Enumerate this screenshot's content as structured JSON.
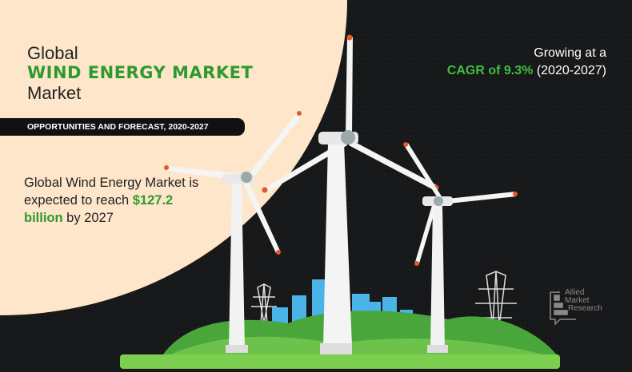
{
  "title": {
    "line1": "Global",
    "highlight": "WIND ENERGY  MARKET",
    "line3": "Market"
  },
  "banner": "OPPORTUNITIES AND FORECAST, 2020-2027",
  "description": {
    "prefix": "Global Wind Energy Market is expected to reach ",
    "value": "$127.2 billion",
    "suffix": " by 2027"
  },
  "growth": {
    "line1": "Growing at a",
    "cagr": "CAGR of 9.3%",
    "period": " (2020-2027)"
  },
  "logo": {
    "line1": "Allied",
    "line2": "Market",
    "line3": "Research"
  },
  "colors": {
    "accent_green": "#2e9a2e",
    "background": "#161718",
    "beige": "#fde6c9",
    "blade_tip": "#e8552a"
  }
}
